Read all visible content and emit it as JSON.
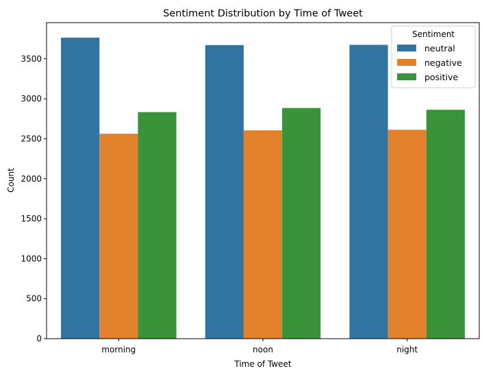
{
  "chart_data": {
    "type": "bar",
    "title": "Sentiment Distribution by Time of Tweet",
    "xlabel": "Time of Tweet",
    "ylabel": "Count",
    "categories": [
      "morning",
      "noon",
      "night"
    ],
    "series": [
      {
        "name": "neutral",
        "color": "#3274a1",
        "values": [
          3765,
          3672,
          3675
        ]
      },
      {
        "name": "negative",
        "color": "#e1812c",
        "values": [
          2563,
          2605,
          2613
        ]
      },
      {
        "name": "positive",
        "color": "#3a923a",
        "values": [
          2834,
          2885,
          2863
        ]
      }
    ],
    "ylim": [
      0,
      3953
    ],
    "yticks": [
      0,
      500,
      1000,
      1500,
      2000,
      2500,
      3000,
      3500
    ],
    "grid": false,
    "legend": {
      "title": "Sentiment",
      "placement": "top-right"
    }
  }
}
